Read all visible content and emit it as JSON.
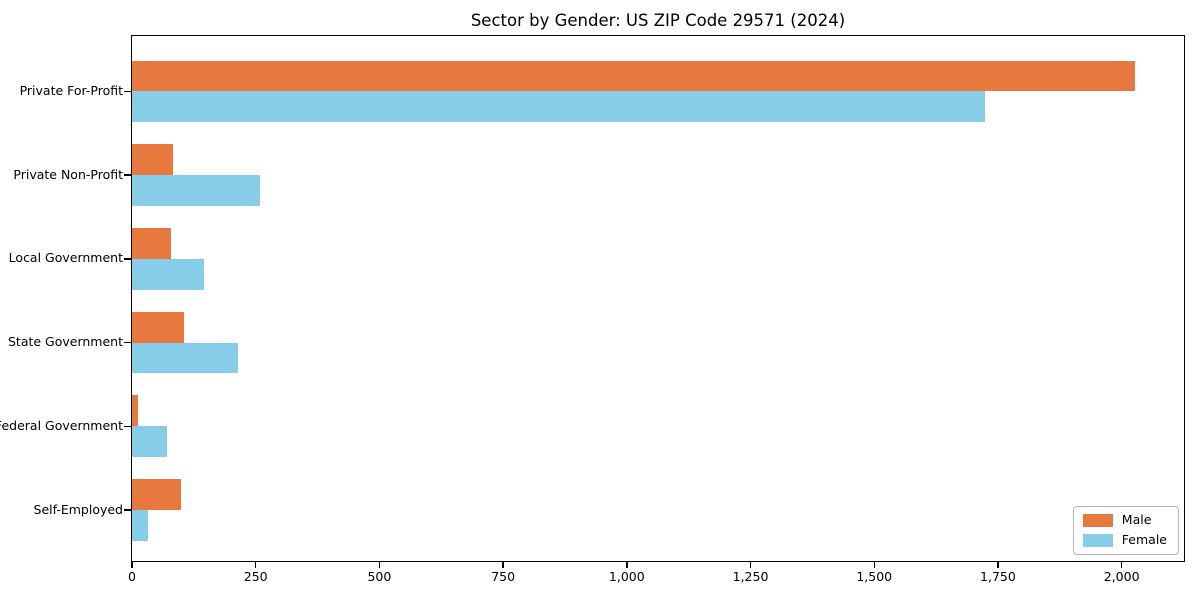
{
  "title": "Sector by Gender: US ZIP Code 29571 (2024)",
  "chart_data": {
    "type": "bar",
    "orientation": "horizontal",
    "title": "Sector by Gender: US ZIP Code 29571 (2024)",
    "categories": [
      "Private For-Profit",
      "Private Non-Profit",
      "Local Government",
      "State Government",
      "Federal Government",
      "Self-Employed"
    ],
    "series": [
      {
        "name": "Male",
        "color": "#E8793E",
        "values": [
          2030,
          84,
          79,
          105,
          13,
          100
        ]
      },
      {
        "name": "Female",
        "color": "#87CDE9",
        "values": [
          1727,
          260,
          145,
          215,
          70,
          33
        ]
      }
    ],
    "xlabel": "",
    "ylabel": "",
    "xlim": [
      0,
      2130
    ],
    "x_ticks": [
      0,
      250,
      500,
      750,
      1000,
      1250,
      1500,
      1750,
      2000
    ],
    "x_tick_labels": [
      "0",
      "250",
      "500",
      "750",
      "1,000",
      "1,250",
      "1,500",
      "1,750",
      "2,000"
    ],
    "grid": false,
    "legend_position": "lower right"
  },
  "legend": {
    "items": [
      {
        "label": "Male",
        "color": "#E8793E"
      },
      {
        "label": "Female",
        "color": "#87CDE9"
      }
    ]
  }
}
